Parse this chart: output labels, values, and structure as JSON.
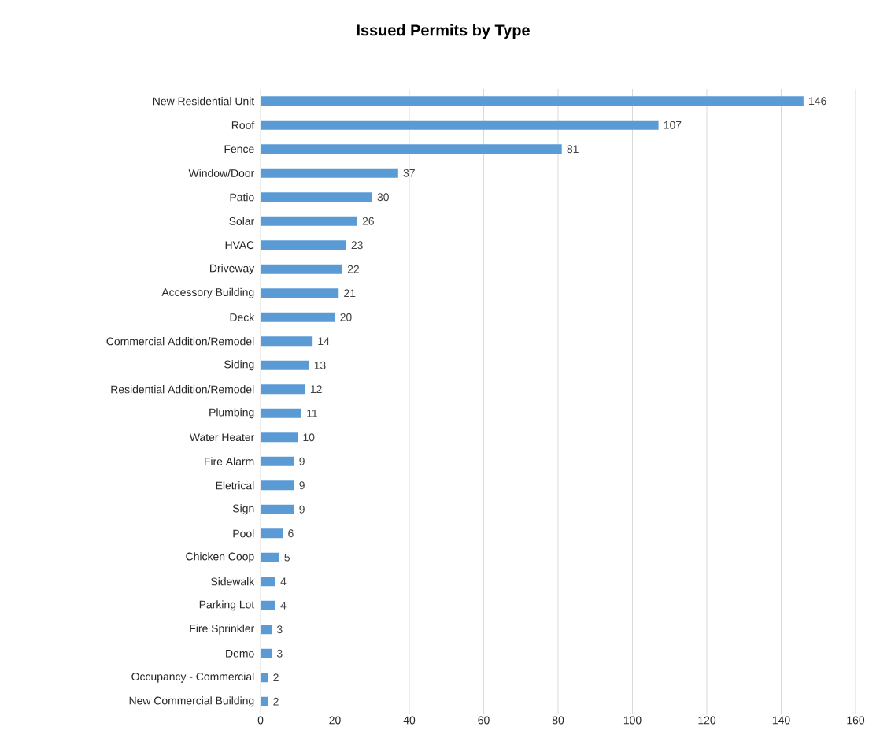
{
  "chart_data": {
    "type": "bar",
    "orientation": "horizontal",
    "title": "Issued Permits by Type",
    "categories": [
      "New Residential Unit",
      "Roof",
      "Fence",
      "Window/Door",
      "Patio",
      "Solar",
      "HVAC",
      "Driveway",
      "Accessory Building",
      "Deck",
      "Commercial Addition/Remodel",
      "Siding",
      "Residential Addition/Remodel",
      "Plumbing",
      "Water Heater",
      "Fire Alarm",
      "Eletrical",
      "Sign",
      "Pool",
      "Chicken Coop",
      "Sidewalk",
      "Parking Lot",
      "Fire Sprinkler",
      "Demo",
      "Occupancy - Commercial",
      "New Commercial Building"
    ],
    "values": [
      146,
      107,
      81,
      37,
      30,
      26,
      23,
      22,
      21,
      20,
      14,
      13,
      12,
      11,
      10,
      9,
      9,
      9,
      6,
      5,
      4,
      4,
      3,
      3,
      2,
      2
    ],
    "color": "#5b9bd5",
    "xlim": [
      0,
      160
    ],
    "xticks": [
      0,
      20,
      40,
      60,
      80,
      100,
      120,
      140,
      160
    ],
    "grid": "x",
    "data_labels": true
  }
}
